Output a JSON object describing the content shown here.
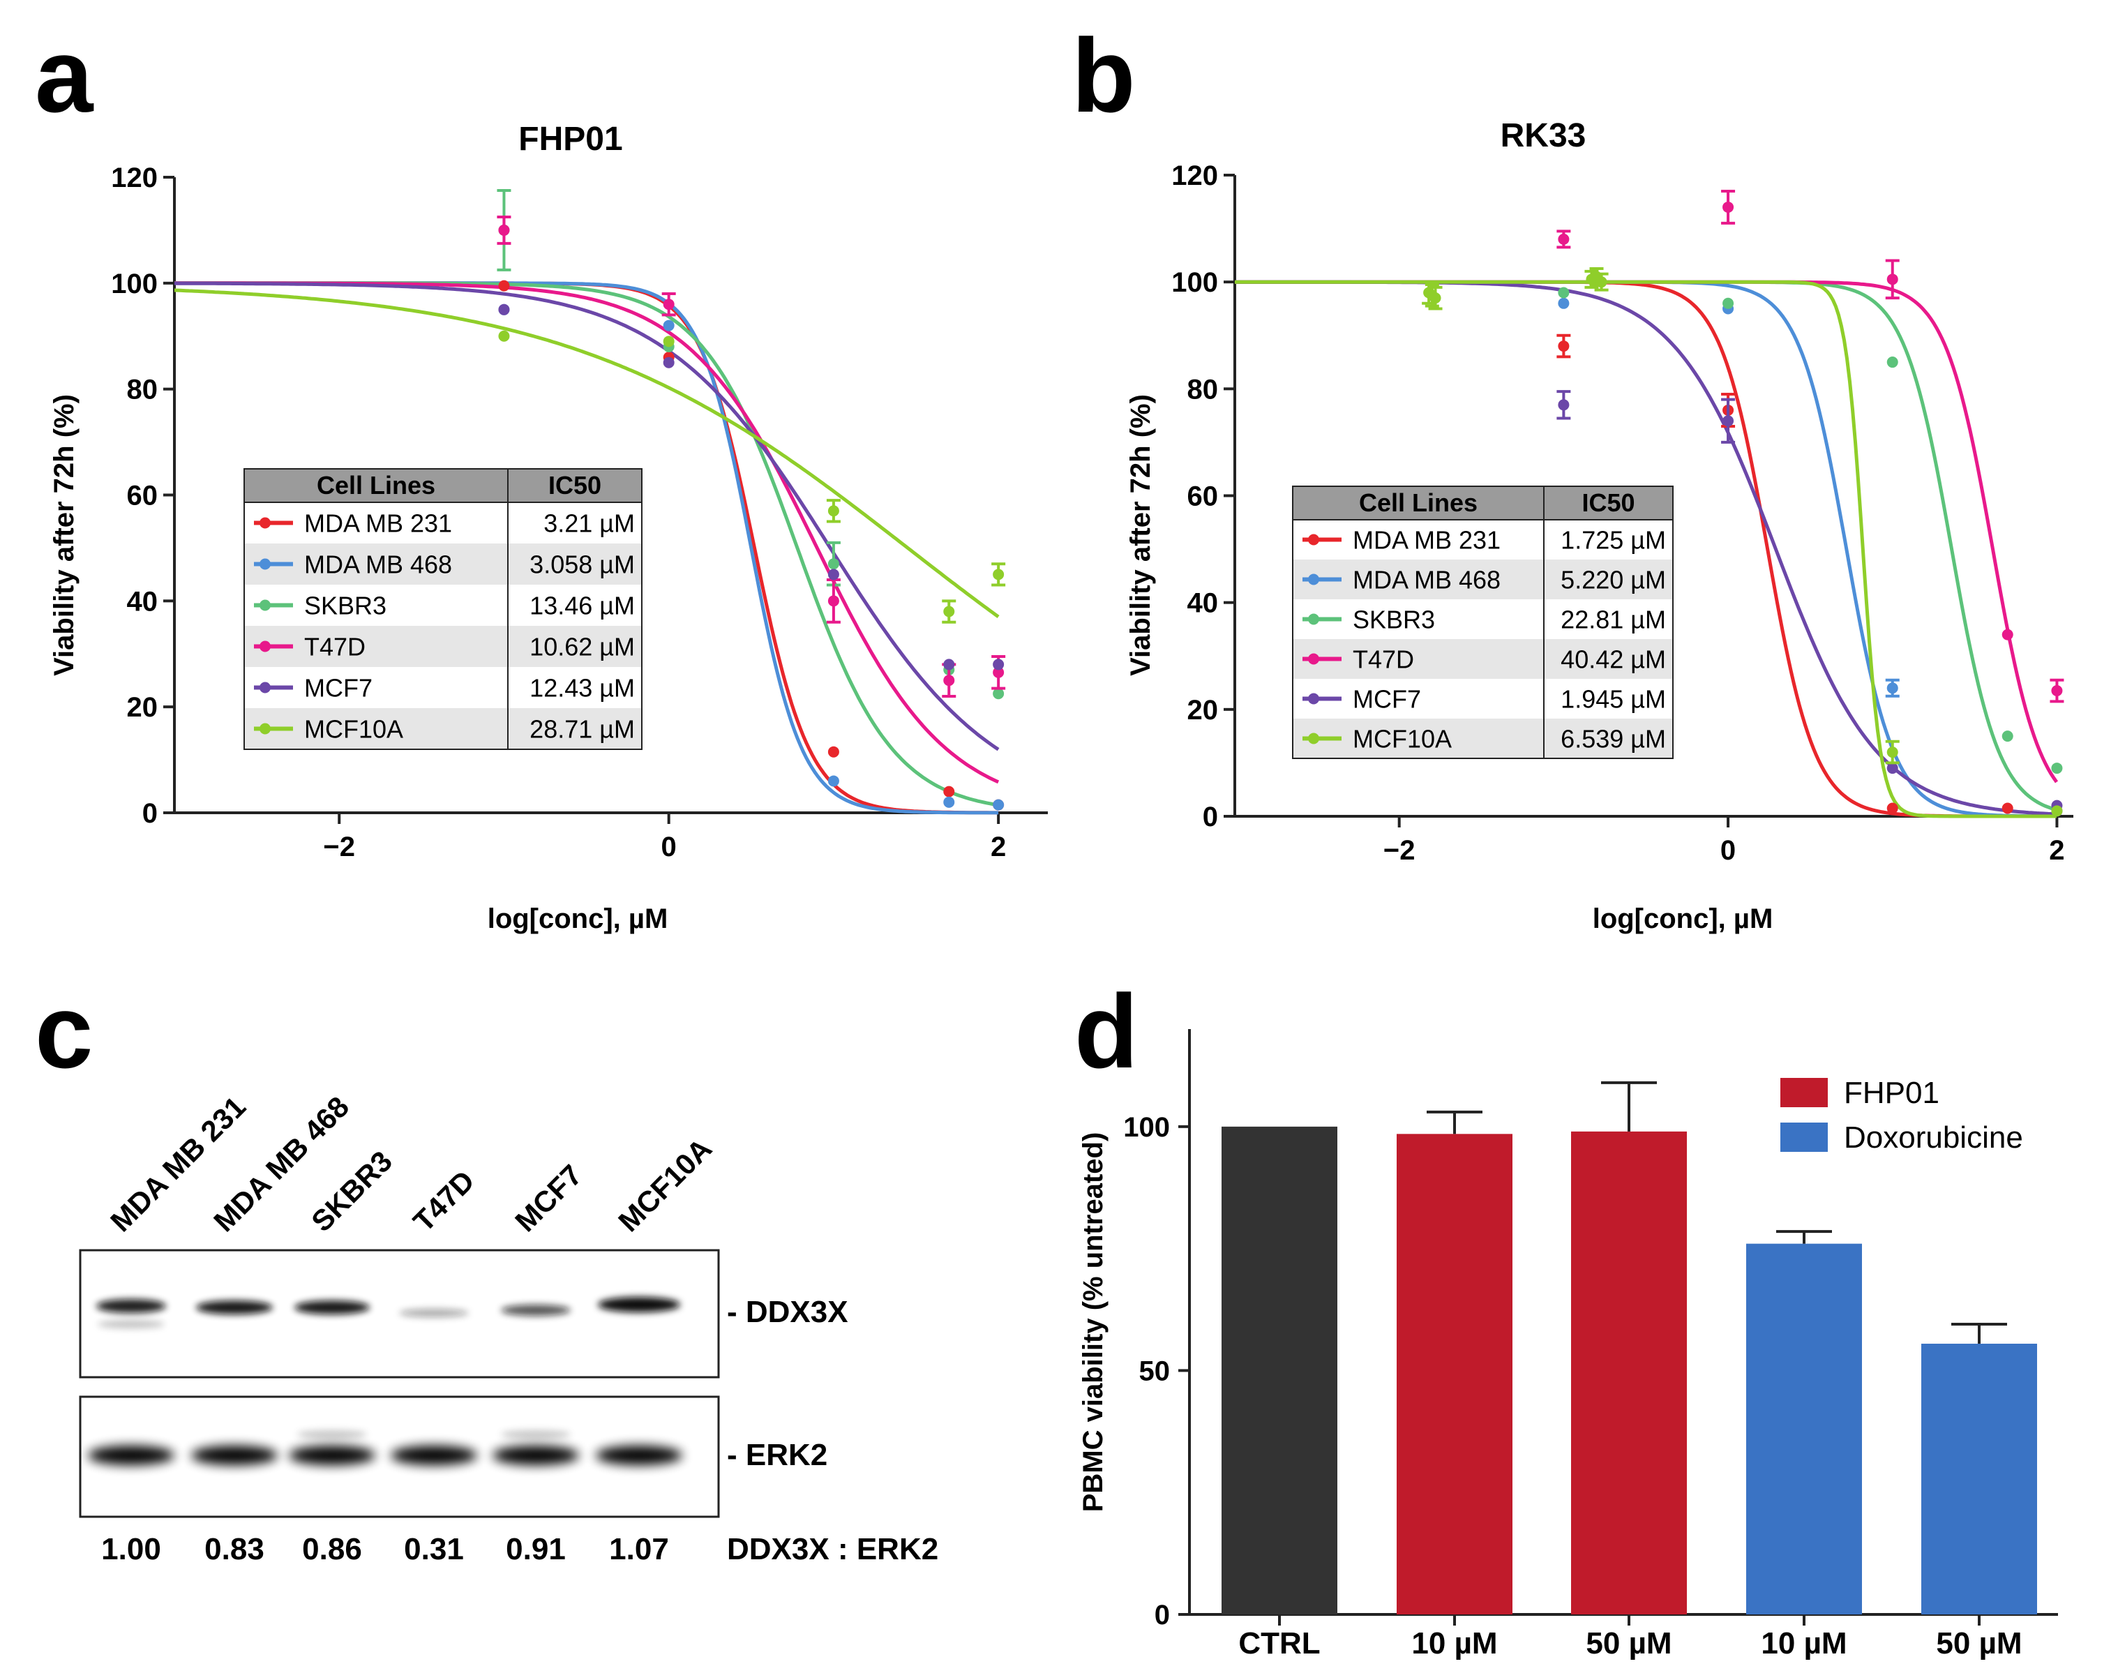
{
  "colors": {
    "MDA MB 231": "#e8262b",
    "MDA MB 468": "#4d8ed8",
    "SKBR3": "#5cc27a",
    "T47D": "#e8198b",
    "MCF7": "#6b47a8",
    "MCF10A": "#8fce2a",
    "ctrl": "#333333",
    "fhp01": "#c01b2b",
    "doxo": "#3a73c4",
    "table_header": "#9b9b9b",
    "table_shade": "#e6e6e6"
  },
  "panels": {
    "a": {
      "letter": "a"
    },
    "b": {
      "letter": "b"
    },
    "c": {
      "letter": "c"
    },
    "d": {
      "letter": "d"
    }
  },
  "chart_data": [
    {
      "id": "a",
      "type": "line",
      "title": "FHP01",
      "xlabel": "log[conc], µM",
      "ylabel": "Viability after 72h (%)",
      "xlim": [
        -3,
        2.3
      ],
      "ylim": [
        0,
        120
      ],
      "xticks": [
        -2,
        0,
        2
      ],
      "xtick_labels": [
        "−2",
        "0",
        "2"
      ],
      "yticks": [
        0,
        20,
        40,
        60,
        80,
        100,
        120
      ],
      "table_headers": [
        "Cell Lines",
        "IC50"
      ],
      "series": [
        {
          "name": "MDA MB 231",
          "ic50": "3.21 µM",
          "top": 100,
          "bottom": 0,
          "logec50": 0.52,
          "hill": 2.6,
          "x": [
            -1,
            0,
            1,
            1.7,
            2
          ],
          "y": [
            99.5,
            86,
            11.5,
            4,
            1.5
          ],
          "err": [
            0,
            0,
            0,
            0,
            0
          ]
        },
        {
          "name": "MDA MB 468",
          "ic50": "3.058 µM",
          "top": 100,
          "bottom": 0,
          "logec50": 0.5,
          "hill": 2.8,
          "x": [
            -1,
            0,
            1,
            1.7,
            2
          ],
          "y": [
            95,
            92,
            6,
            2,
            1.5
          ],
          "err": [
            0,
            0,
            0,
            0,
            0
          ]
        },
        {
          "name": "SKBR3",
          "ic50": "13.46 µM",
          "top": 100,
          "bottom": 0,
          "logec50": 0.78,
          "hill": 1.5,
          "x": [
            -1,
            0,
            1,
            1.7,
            2
          ],
          "y": [
            110,
            88,
            47,
            27,
            22.5
          ],
          "err": [
            7.5,
            0,
            4,
            0,
            0
          ]
        },
        {
          "name": "T47D",
          "ic50": "10.62 µM",
          "top": 100,
          "bottom": 0,
          "logec50": 0.9,
          "hill": 1.1,
          "x": [
            -1,
            0,
            1,
            1.7,
            2
          ],
          "y": [
            110,
            96,
            40,
            25,
            26.5
          ],
          "err": [
            2.5,
            2,
            4,
            3,
            3
          ]
        },
        {
          "name": "MCF7",
          "ic50": "12.43 µM",
          "top": 100,
          "bottom": 0,
          "logec50": 0.98,
          "hill": 0.85,
          "x": [
            -1,
            0,
            1,
            1.7,
            2
          ],
          "y": [
            95,
            85,
            45,
            28,
            28
          ],
          "err": [
            0,
            0,
            0,
            0,
            0
          ]
        },
        {
          "name": "MCF10A",
          "ic50": "28.71 µM",
          "top": 100,
          "bottom": 0,
          "logec50": 1.45,
          "hill": 0.42,
          "x": [
            -1,
            0,
            1,
            1.7,
            2
          ],
          "y": [
            90,
            89,
            57,
            38,
            45
          ],
          "err": [
            0,
            0,
            2,
            2,
            2
          ]
        }
      ]
    },
    {
      "id": "b",
      "type": "line",
      "title": "RK33",
      "xlabel": "log[conc], µM",
      "ylabel": "Viability after 72h (%)",
      "xlim": [
        -3,
        2.1
      ],
      "ylim": [
        0,
        120
      ],
      "xticks": [
        -2,
        0,
        2
      ],
      "xtick_labels": [
        "−2",
        "0",
        "2"
      ],
      "yticks": [
        0,
        20,
        40,
        60,
        80,
        100,
        120
      ],
      "table_headers": [
        "Cell Lines",
        "IC50"
      ],
      "series": [
        {
          "name": "MDA MB 231",
          "ic50": "1.725 µM",
          "top": 100,
          "bottom": 0,
          "logec50": 0.24,
          "hill": 3.0,
          "x": [
            -1,
            0,
            1,
            1.7,
            2
          ],
          "y": [
            88,
            76,
            1.5,
            1.5,
            1
          ],
          "err": [
            2,
            3,
            0,
            0,
            0
          ]
        },
        {
          "name": "MDA MB 468",
          "ic50": "5.220 µM",
          "top": 100,
          "bottom": 0,
          "logec50": 0.72,
          "hill": 3.0,
          "x": [
            -1,
            0,
            1,
            2
          ],
          "y": [
            96,
            95,
            24,
            1
          ],
          "err": [
            0,
            0,
            1.5,
            0
          ]
        },
        {
          "name": "SKBR3",
          "ic50": "22.81 µM",
          "top": 100,
          "bottom": 0,
          "logec50": 1.36,
          "hill": 3.0,
          "x": [
            -1,
            0,
            1,
            1.7,
            2
          ],
          "y": [
            98,
            96,
            85,
            15,
            9
          ],
          "err": [
            0,
            0,
            0,
            0,
            0
          ]
        },
        {
          "name": "T47D",
          "ic50": "40.42 µM",
          "top": 100,
          "bottom": 0,
          "logec50": 1.61,
          "hill": 3.0,
          "x": [
            -1,
            0,
            1,
            1.7,
            2
          ],
          "y": [
            108,
            114,
            100.5,
            34,
            23.5
          ],
          "err": [
            1.5,
            3,
            3.5,
            0,
            2
          ]
        },
        {
          "name": "MCF7",
          "ic50": "1.945 µM",
          "top": 100,
          "bottom": 0,
          "logec50": 0.29,
          "hill": 1.4,
          "x": [
            -1,
            0,
            1,
            2
          ],
          "y": [
            77,
            74,
            9,
            2
          ],
          "err": [
            2.5,
            4,
            0,
            0
          ]
        },
        {
          "name": "MCF10A",
          "ic50": "6.539 µM",
          "top": 100,
          "bottom": 0,
          "logec50": 0.82,
          "hill": 8.0,
          "x": [
            -1.82,
            -1.8,
            -1.78,
            -0.83,
            -0.8,
            -0.77,
            1,
            2
          ],
          "y": [
            98,
            97.5,
            97,
            100.5,
            101,
            100,
            12,
            1
          ],
          "err": [
            2,
            2,
            2,
            1.5,
            1.5,
            1.5,
            2,
            0
          ]
        }
      ]
    },
    {
      "id": "d",
      "type": "bar",
      "categories": [
        "CTRL",
        "10 µM",
        "50 µM",
        "10 µM",
        "50 µM"
      ],
      "values": [
        100,
        98.5,
        99,
        76,
        55.5
      ],
      "errors": [
        0,
        4.5,
        10,
        2.5,
        4
      ],
      "groups": [
        "CTRL",
        "FHP01",
        "FHP01",
        "Doxorubicine",
        "Doxorubicine"
      ],
      "ylabel": "PBMC viability (% untreated)",
      "ylim": [
        0,
        120
      ],
      "yticks": [
        0,
        50,
        100
      ],
      "legend": [
        "FHP01",
        "Doxorubicine"
      ],
      "legend_position": "top-right"
    }
  ],
  "blot": {
    "lanes": [
      "MDA MB 231",
      "MDA MB 468",
      "SKBR3",
      "T47D",
      "MCF7",
      "MCF10A"
    ],
    "ddx3x_label": "- DDX3X",
    "erk2_label": "- ERK2",
    "ratio_label": "DDX3X : ERK2",
    "ratios": [
      "1.00",
      "0.83",
      "0.86",
      "0.31",
      "0.91",
      "1.07"
    ]
  }
}
